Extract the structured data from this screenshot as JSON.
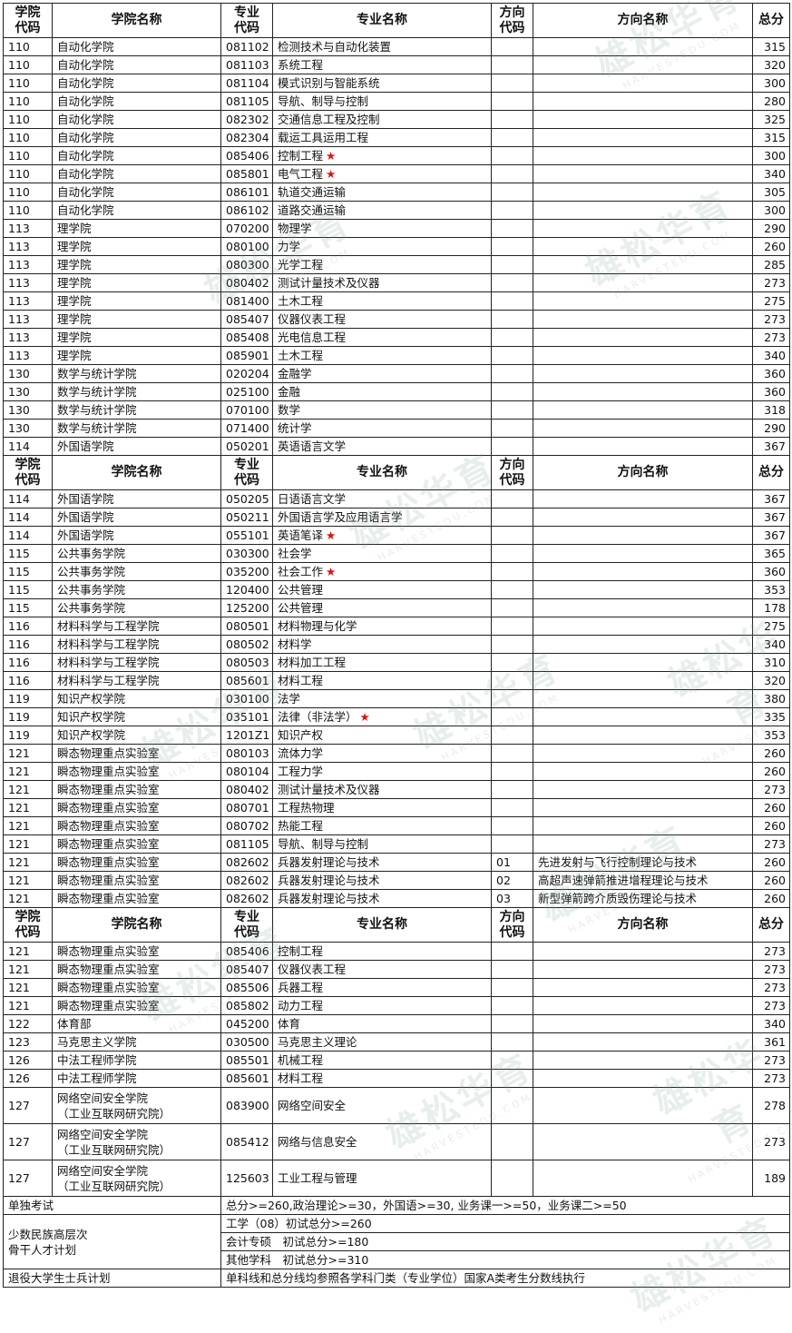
{
  "header": [
    "学院\n代码",
    "学院名称",
    "专业\n代码",
    "专业名称",
    "方向\n代码",
    "方向名称",
    "总分"
  ],
  "sections": [
    {
      "rows": [
        [
          "110",
          "自动化学院",
          "081102",
          "检测技术与自动化装置",
          null,
          null,
          315
        ],
        [
          "110",
          "自动化学院",
          "081103",
          "系统工程",
          null,
          null,
          320
        ],
        [
          "110",
          "自动化学院",
          "081104",
          "模式识别与智能系统",
          null,
          null,
          300
        ],
        [
          "110",
          "自动化学院",
          "081105",
          "导航、制导与控制",
          null,
          null,
          280
        ],
        [
          "110",
          "自动化学院",
          "082302",
          "交通信息工程及控制",
          null,
          null,
          325
        ],
        [
          "110",
          "自动化学院",
          "082304",
          "载运工具运用工程",
          null,
          null,
          315
        ],
        [
          "110",
          "自动化学院",
          "085406",
          "控制工程",
          null,
          null,
          300,
          "★"
        ],
        [
          "110",
          "自动化学院",
          "085801",
          "电气工程",
          null,
          null,
          340,
          "★"
        ],
        [
          "110",
          "自动化学院",
          "086101",
          "轨道交通运输",
          null,
          null,
          305
        ],
        [
          "110",
          "自动化学院",
          "086102",
          "道路交通运输",
          null,
          null,
          300
        ],
        [
          "113",
          "理学院",
          "070200",
          "物理学",
          null,
          null,
          290
        ],
        [
          "113",
          "理学院",
          "080100",
          "力学",
          null,
          null,
          260
        ],
        [
          "113",
          "理学院",
          "080300",
          "光学工程",
          null,
          null,
          285
        ],
        [
          "113",
          "理学院",
          "080402",
          "测试计量技术及仪器",
          null,
          null,
          273
        ],
        [
          "113",
          "理学院",
          "081400",
          "土木工程",
          null,
          null,
          275
        ],
        [
          "113",
          "理学院",
          "085407",
          "仪器仪表工程",
          null,
          null,
          273
        ],
        [
          "113",
          "理学院",
          "085408",
          "光电信息工程",
          null,
          null,
          273
        ],
        [
          "113",
          "理学院",
          "085901",
          "土木工程",
          null,
          null,
          340
        ],
        [
          "130",
          "数学与统计学院",
          "020204",
          "金融学",
          null,
          null,
          360
        ],
        [
          "130",
          "数学与统计学院",
          "025100",
          "金融",
          null,
          null,
          360
        ],
        [
          "130",
          "数学与统计学院",
          "070100",
          "数学",
          null,
          null,
          318
        ],
        [
          "130",
          "数学与统计学院",
          "071400",
          "统计学",
          null,
          null,
          290
        ],
        [
          "114",
          "外国语学院",
          "050201",
          "英语语言文学",
          null,
          null,
          367
        ]
      ]
    },
    {
      "rows": [
        [
          "114",
          "外国语学院",
          "050205",
          "日语语言文学",
          null,
          null,
          367
        ],
        [
          "114",
          "外国语学院",
          "050211",
          "外国语言学及应用语言学",
          null,
          null,
          367
        ],
        [
          "114",
          "外国语学院",
          "055101",
          "英语笔译",
          null,
          null,
          367,
          "★"
        ],
        [
          "115",
          "公共事务学院",
          "030300",
          "社会学",
          null,
          null,
          365
        ],
        [
          "115",
          "公共事务学院",
          "035200",
          "社会工作",
          null,
          null,
          360,
          "★"
        ],
        [
          "115",
          "公共事务学院",
          "120400",
          "公共管理",
          null,
          null,
          353
        ],
        [
          "115",
          "公共事务学院",
          "125200",
          "公共管理",
          null,
          null,
          178
        ],
        [
          "116",
          "材料科学与工程学院",
          "080501",
          "材料物理与化学",
          null,
          null,
          275
        ],
        [
          "116",
          "材料科学与工程学院",
          "080502",
          "材料学",
          null,
          null,
          340
        ],
        [
          "116",
          "材料科学与工程学院",
          "080503",
          "材料加工工程",
          null,
          null,
          310
        ],
        [
          "116",
          "材料科学与工程学院",
          "085601",
          "材料工程",
          null,
          null,
          320
        ],
        [
          "119",
          "知识产权学院",
          "030100",
          "法学",
          null,
          null,
          380
        ],
        [
          "119",
          "知识产权学院",
          "035101",
          "法律（非法学）",
          null,
          null,
          335,
          "★"
        ],
        [
          "119",
          "知识产权学院",
          "1201Z1",
          "知识产权",
          null,
          null,
          353
        ],
        [
          "121",
          "瞬态物理重点实验室",
          "080103",
          "流体力学",
          null,
          null,
          260
        ],
        [
          "121",
          "瞬态物理重点实验室",
          "080104",
          "工程力学",
          null,
          null,
          260
        ],
        [
          "121",
          "瞬态物理重点实验室",
          "080402",
          "测试计量技术及仪器",
          null,
          null,
          273
        ],
        [
          "121",
          "瞬态物理重点实验室",
          "080701",
          "工程热物理",
          null,
          null,
          260
        ],
        [
          "121",
          "瞬态物理重点实验室",
          "080702",
          "热能工程",
          null,
          null,
          260
        ],
        [
          "121",
          "瞬态物理重点实验室",
          "081105",
          "导航、制导与控制",
          null,
          null,
          273
        ],
        [
          "121",
          "瞬态物理重点实验室",
          "082602",
          "兵器发射理论与技术",
          "01",
          "先进发射与飞行控制理论与技术",
          260
        ],
        [
          "121",
          "瞬态物理重点实验室",
          "082602",
          "兵器发射理论与技术",
          "02",
          "高超声速弹箭推进增程理论与技术",
          260
        ],
        [
          "121",
          "瞬态物理重点实验室",
          "082602",
          "兵器发射理论与技术",
          "03",
          "新型弹箭跨介质毁伤理论与技术",
          260
        ]
      ]
    },
    {
      "rows": [
        [
          "121",
          "瞬态物理重点实验室",
          "085406",
          "控制工程",
          null,
          null,
          273
        ],
        [
          "121",
          "瞬态物理重点实验室",
          "085407",
          "仪器仪表工程",
          null,
          null,
          273
        ],
        [
          "121",
          "瞬态物理重点实验室",
          "085506",
          "兵器工程",
          null,
          null,
          273
        ],
        [
          "121",
          "瞬态物理重点实验室",
          "085802",
          "动力工程",
          null,
          null,
          273
        ],
        [
          "122",
          "体育部",
          "045200",
          "体育",
          null,
          null,
          340
        ],
        [
          "123",
          "马克思主义学院",
          "030500",
          "马克思主义理论",
          null,
          null,
          361
        ],
        [
          "126",
          "中法工程师学院",
          "085501",
          "机械工程",
          null,
          null,
          273
        ],
        [
          "126",
          "中法工程师学院",
          "085601",
          "材料工程",
          null,
          null,
          273
        ],
        [
          "127",
          "网络空间安全学院\n （工业互联网研究院）",
          "083900",
          "网络空间安全",
          null,
          null,
          278
        ],
        [
          "127",
          "网络空间安全学院\n （工业互联网研究院）",
          "085412",
          "网络与信息安全",
          null,
          null,
          273
        ],
        [
          "127",
          "网络空间安全学院\n （工业互联网研究院）",
          "125603",
          "工业工程与管理",
          null,
          null,
          189
        ]
      ]
    }
  ],
  "notes": [
    {
      "label": "单独考试",
      "lines": [
        "总分>=260,政治理论>=30，外国语>=30, 业务课一>=50，业务课二>=50"
      ]
    },
    {
      "label": "少数民族高层次\n骨干人才计划",
      "lines": [
        "工学（08）初试总分>=260",
        "会计专硕　初试总分>=180",
        "其他学科　初试总分>=310"
      ]
    },
    {
      "label": "退役大学生士兵计划",
      "lines": [
        "单科线和总分线均参照各学科门类（专业学位）国家A类考生分数线执行"
      ]
    }
  ],
  "watermark": {
    "name": "雄松华育",
    "site": "HARVESTEDU.COM"
  }
}
